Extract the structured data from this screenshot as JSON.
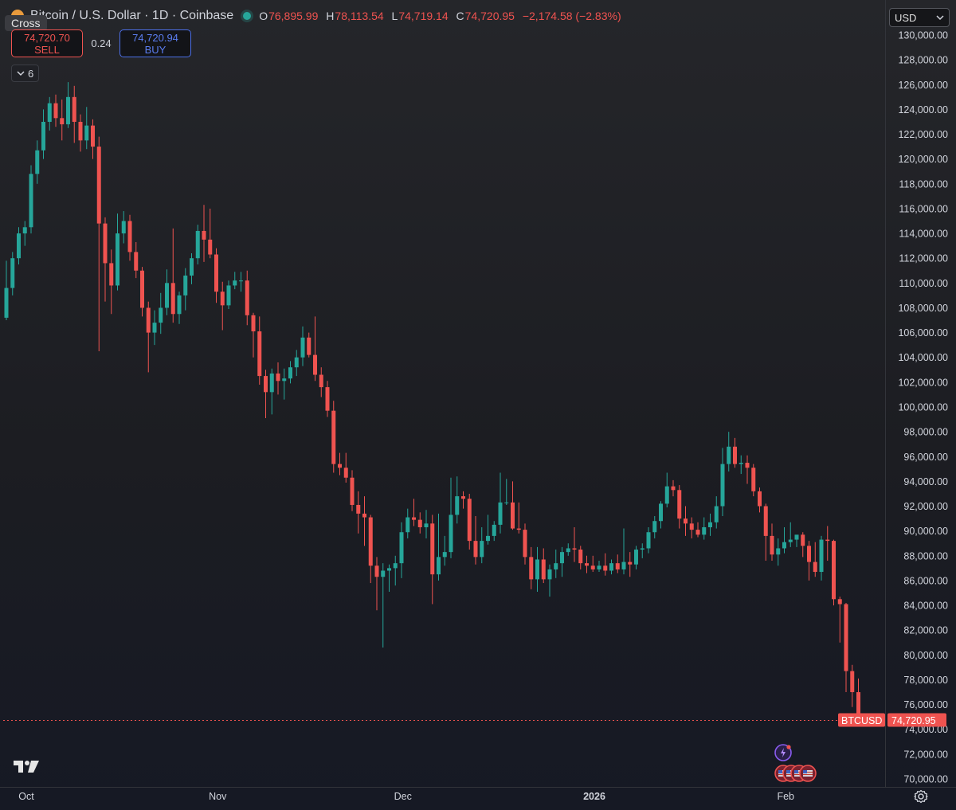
{
  "header": {
    "symbol": "Bitcoin / U.S. Dollar · 1D · Coinbase",
    "o_label": "O",
    "o": "76,895.99",
    "h_label": "H",
    "h": "78,113.54",
    "l_label": "L",
    "l": "74,719.14",
    "c_label": "C",
    "c": "74,720.95",
    "change": "−2,174.58 (−2.83%)"
  },
  "crosshair_tooltip": "Cross",
  "trade": {
    "sell_price": "74,720.70",
    "sell_label": "SELL",
    "spread": "0.24",
    "buy_price": "74,720.94",
    "buy_label": "BUY"
  },
  "indicators_toggle": {
    "count": "6"
  },
  "currency": "USD",
  "price_label": {
    "symbol": "BTCUSD",
    "value": "74,720.95"
  },
  "colors": {
    "up": "#26a69a",
    "down": "#ef5350",
    "accent": "#4c6fe8"
  },
  "icons": [
    "coin-icon",
    "live-dot-icon",
    "chevron-down-icon",
    "tradingview-logo-icon",
    "gear-icon",
    "events-icon",
    "flag-icon"
  ],
  "chart_data": {
    "type": "candlestick",
    "y_ticks": [
      "70,000.00",
      "72,000.00",
      "74,000.00",
      "76,000.00",
      "78,000.00",
      "80,000.00",
      "82,000.00",
      "84,000.00",
      "86,000.00",
      "88,000.00",
      "90,000.00",
      "92,000.00",
      "94,000.00",
      "96,000.00",
      "98,000.00",
      "100,000.00",
      "102,000.00",
      "104,000.00",
      "106,000.00",
      "108,000.00",
      "110,000.00",
      "112,000.00",
      "114,000.00",
      "116,000.00",
      "118,000.00",
      "120,000.00",
      "122,000.00",
      "124,000.00",
      "126,000.00",
      "128,000.00",
      "130,000.00"
    ],
    "x_ticks": [
      {
        "label": "Oct",
        "index": 4,
        "bold": false
      },
      {
        "label": "Nov",
        "index": 35,
        "bold": false
      },
      {
        "label": "Dec",
        "index": 65,
        "bold": false
      },
      {
        "label": "2026",
        "index": 96,
        "bold": true
      },
      {
        "label": "Feb",
        "index": 127,
        "bold": false
      }
    ],
    "ylim": [
      69500,
      130500
    ],
    "candles_close": [
      109600,
      112000,
      114000,
      114500,
      118800,
      120700,
      123000,
      124500,
      123300,
      122800,
      125000,
      123000,
      121500,
      122700,
      121000,
      114800,
      111600,
      109800,
      114000,
      115000,
      112500,
      111000,
      108000,
      106000,
      106800,
      108000,
      110000,
      107500,
      109000,
      110600,
      112000,
      114200,
      113500,
      112300,
      109300,
      108200,
      109800,
      110200,
      110200,
      107400,
      106100,
      102500,
      101200,
      102700,
      102100,
      102300,
      103200,
      104000,
      105600,
      104200,
      102600,
      101600,
      99700,
      95400,
      95100,
      94300,
      92100,
      91400,
      91100,
      87200,
      86300,
      86800,
      87000,
      87400,
      89900,
      91100,
      90900,
      90300,
      90600,
      86500,
      87900,
      88300,
      91300,
      92800,
      92600,
      89200,
      87900,
      89200,
      89600,
      90500,
      92300,
      92300,
      90200,
      90100,
      87900,
      86100,
      87700,
      86100,
      86900,
      87400,
      88300,
      88600,
      88500,
      87400,
      87200,
      86900,
      87200,
      86800,
      87400,
      86900,
      87500,
      87300,
      88500,
      88600,
      89900,
      90800,
      92200,
      93600,
      93300,
      91000,
      90600,
      90100,
      89700,
      90300,
      90700,
      92000,
      95400,
      96800,
      95400,
      95500,
      95100,
      93200,
      92000,
      89600,
      88100,
      88600,
      89100,
      89300,
      89700,
      88800,
      87500,
      86700,
      89300,
      89200,
      84500,
      84100,
      78700,
      77000,
      74721
    ],
    "candles": [
      {
        "o": 107200,
        "h": 111800,
        "l": 107000,
        "c": 109600
      },
      {
        "o": 109600,
        "h": 112500,
        "l": 109000,
        "c": 112000
      },
      {
        "o": 112000,
        "h": 114500,
        "l": 111500,
        "c": 114000
      },
      {
        "o": 114000,
        "h": 115000,
        "l": 113000,
        "c": 114500
      },
      {
        "o": 114500,
        "h": 119500,
        "l": 114000,
        "c": 118800
      },
      {
        "o": 118800,
        "h": 121500,
        "l": 118000,
        "c": 120700
      },
      {
        "o": 120700,
        "h": 124000,
        "l": 120000,
        "c": 123000
      },
      {
        "o": 123000,
        "h": 125000,
        "l": 122300,
        "c": 124500
      },
      {
        "o": 124500,
        "h": 125200,
        "l": 122600,
        "c": 123300
      },
      {
        "o": 123300,
        "h": 124800,
        "l": 121500,
        "c": 122800
      },
      {
        "o": 122800,
        "h": 126200,
        "l": 122500,
        "c": 125000
      },
      {
        "o": 125000,
        "h": 125900,
        "l": 121300,
        "c": 123000
      },
      {
        "o": 123000,
        "h": 123600,
        "l": 120600,
        "c": 121500
      },
      {
        "o": 121500,
        "h": 124200,
        "l": 120800,
        "c": 122700
      },
      {
        "o": 122700,
        "h": 123200,
        "l": 120000,
        "c": 121000
      },
      {
        "o": 121000,
        "h": 121800,
        "l": 104500,
        "c": 114800
      },
      {
        "o": 114800,
        "h": 115300,
        "l": 108500,
        "c": 111600
      },
      {
        "o": 111600,
        "h": 112700,
        "l": 107500,
        "c": 109800
      },
      {
        "o": 109800,
        "h": 115600,
        "l": 109400,
        "c": 114000
      },
      {
        "o": 114000,
        "h": 115800,
        "l": 113200,
        "c": 115000
      },
      {
        "o": 115000,
        "h": 115500,
        "l": 111800,
        "c": 112500
      },
      {
        "o": 112500,
        "h": 113300,
        "l": 110400,
        "c": 111000
      },
      {
        "o": 111000,
        "h": 111300,
        "l": 107300,
        "c": 108000
      },
      {
        "o": 108000,
        "h": 108500,
        "l": 102800,
        "c": 106000
      },
      {
        "o": 106000,
        "h": 107800,
        "l": 105000,
        "c": 106800
      },
      {
        "o": 106800,
        "h": 109200,
        "l": 105900,
        "c": 108000
      },
      {
        "o": 108000,
        "h": 111100,
        "l": 107400,
        "c": 110000
      },
      {
        "o": 110000,
        "h": 114400,
        "l": 106800,
        "c": 107500
      },
      {
        "o": 107500,
        "h": 109300,
        "l": 106700,
        "c": 109000
      },
      {
        "o": 109000,
        "h": 111200,
        "l": 107800,
        "c": 110600
      },
      {
        "o": 110600,
        "h": 112400,
        "l": 109900,
        "c": 112000
      },
      {
        "o": 112000,
        "h": 114700,
        "l": 111500,
        "c": 114200
      },
      {
        "o": 114200,
        "h": 116300,
        "l": 111700,
        "c": 113500
      },
      {
        "o": 113500,
        "h": 116000,
        "l": 112000,
        "c": 112300
      },
      {
        "o": 112300,
        "h": 112800,
        "l": 108400,
        "c": 109300
      },
      {
        "o": 109300,
        "h": 110100,
        "l": 106200,
        "c": 108200
      },
      {
        "o": 108200,
        "h": 110200,
        "l": 107900,
        "c": 109800
      },
      {
        "o": 109800,
        "h": 110900,
        "l": 109500,
        "c": 110200
      },
      {
        "o": 110200,
        "h": 110900,
        "l": 109300,
        "c": 110200
      },
      {
        "o": 110200,
        "h": 111000,
        "l": 106600,
        "c": 107400
      },
      {
        "o": 107400,
        "h": 107600,
        "l": 104000,
        "c": 106100
      },
      {
        "o": 106100,
        "h": 107300,
        "l": 101800,
        "c": 102500
      },
      {
        "o": 102500,
        "h": 103000,
        "l": 99100,
        "c": 101200
      },
      {
        "o": 101200,
        "h": 103100,
        "l": 99400,
        "c": 102700
      },
      {
        "o": 102700,
        "h": 103600,
        "l": 101000,
        "c": 102100
      },
      {
        "o": 102100,
        "h": 103100,
        "l": 100600,
        "c": 102300
      },
      {
        "o": 102300,
        "h": 103700,
        "l": 101900,
        "c": 103200
      },
      {
        "o": 103200,
        "h": 104600,
        "l": 102500,
        "c": 104000
      },
      {
        "o": 104000,
        "h": 106500,
        "l": 103300,
        "c": 105600
      },
      {
        "o": 105600,
        "h": 106000,
        "l": 104000,
        "c": 104200
      },
      {
        "o": 104200,
        "h": 107300,
        "l": 102100,
        "c": 102600
      },
      {
        "o": 102600,
        "h": 103200,
        "l": 100800,
        "c": 101600
      },
      {
        "o": 101600,
        "h": 102100,
        "l": 99200,
        "c": 99700
      },
      {
        "o": 99700,
        "h": 100500,
        "l": 94700,
        "c": 95400
      },
      {
        "o": 95400,
        "h": 96300,
        "l": 94500,
        "c": 95100
      },
      {
        "o": 95100,
        "h": 96300,
        "l": 93900,
        "c": 94300
      },
      {
        "o": 94300,
        "h": 94900,
        "l": 91600,
        "c": 92100
      },
      {
        "o": 92100,
        "h": 93200,
        "l": 89800,
        "c": 91400
      },
      {
        "o": 91400,
        "h": 92800,
        "l": 88800,
        "c": 91100
      },
      {
        "o": 91100,
        "h": 91300,
        "l": 85800,
        "c": 87200
      },
      {
        "o": 87200,
        "h": 87900,
        "l": 83600,
        "c": 86300
      },
      {
        "o": 86300,
        "h": 87400,
        "l": 80600,
        "c": 86800
      },
      {
        "o": 86800,
        "h": 87300,
        "l": 85100,
        "c": 87000
      },
      {
        "o": 87000,
        "h": 88000,
        "l": 85600,
        "c": 87400
      },
      {
        "o": 87400,
        "h": 90700,
        "l": 86200,
        "c": 89900
      },
      {
        "o": 89900,
        "h": 91800,
        "l": 89400,
        "c": 91100
      },
      {
        "o": 91100,
        "h": 92600,
        "l": 90400,
        "c": 90900
      },
      {
        "o": 90900,
        "h": 91500,
        "l": 89800,
        "c": 90300
      },
      {
        "o": 90300,
        "h": 91700,
        "l": 89400,
        "c": 90600
      },
      {
        "o": 90600,
        "h": 91300,
        "l": 84100,
        "c": 86500
      },
      {
        "o": 86500,
        "h": 91400,
        "l": 86000,
        "c": 87900
      },
      {
        "o": 87900,
        "h": 89600,
        "l": 87200,
        "c": 88300
      },
      {
        "o": 88300,
        "h": 94300,
        "l": 87800,
        "c": 91300
      },
      {
        "o": 91300,
        "h": 94400,
        "l": 90600,
        "c": 92800
      },
      {
        "o": 92800,
        "h": 93200,
        "l": 91800,
        "c": 92600
      },
      {
        "o": 92600,
        "h": 93000,
        "l": 88500,
        "c": 89200
      },
      {
        "o": 89200,
        "h": 91200,
        "l": 87300,
        "c": 87900
      },
      {
        "o": 87900,
        "h": 90300,
        "l": 87400,
        "c": 89200
      },
      {
        "o": 89200,
        "h": 91300,
        "l": 88900,
        "c": 89600
      },
      {
        "o": 89600,
        "h": 90800,
        "l": 89200,
        "c": 90500
      },
      {
        "o": 90500,
        "h": 94700,
        "l": 89800,
        "c": 92300
      },
      {
        "o": 92300,
        "h": 94200,
        "l": 92100,
        "c": 92300
      },
      {
        "o": 92300,
        "h": 94000,
        "l": 90100,
        "c": 90200
      },
      {
        "o": 90200,
        "h": 92300,
        "l": 89800,
        "c": 90100
      },
      {
        "o": 90100,
        "h": 90600,
        "l": 87300,
        "c": 87900
      },
      {
        "o": 87900,
        "h": 88700,
        "l": 85300,
        "c": 86100
      },
      {
        "o": 86100,
        "h": 88700,
        "l": 85100,
        "c": 87700
      },
      {
        "o": 87700,
        "h": 88600,
        "l": 85800,
        "c": 86100
      },
      {
        "o": 86100,
        "h": 87300,
        "l": 84700,
        "c": 86900
      },
      {
        "o": 86900,
        "h": 88500,
        "l": 86200,
        "c": 87400
      },
      {
        "o": 87400,
        "h": 88700,
        "l": 86300,
        "c": 88300
      },
      {
        "o": 88300,
        "h": 89000,
        "l": 88000,
        "c": 88600
      },
      {
        "o": 88600,
        "h": 90300,
        "l": 87500,
        "c": 88500
      },
      {
        "o": 88500,
        "h": 88800,
        "l": 86900,
        "c": 87400
      },
      {
        "o": 87400,
        "h": 88000,
        "l": 86600,
        "c": 87200
      },
      {
        "o": 87200,
        "h": 88000,
        "l": 86700,
        "c": 86900
      },
      {
        "o": 86900,
        "h": 87600,
        "l": 86700,
        "c": 87200
      },
      {
        "o": 87200,
        "h": 88200,
        "l": 86400,
        "c": 86800
      },
      {
        "o": 86800,
        "h": 87700,
        "l": 86500,
        "c": 87400
      },
      {
        "o": 87400,
        "h": 88100,
        "l": 86600,
        "c": 86900
      },
      {
        "o": 86900,
        "h": 90200,
        "l": 86500,
        "c": 87500
      },
      {
        "o": 87500,
        "h": 88300,
        "l": 86300,
        "c": 87300
      },
      {
        "o": 87300,
        "h": 88800,
        "l": 86900,
        "c": 88500
      },
      {
        "o": 88500,
        "h": 89000,
        "l": 87800,
        "c": 88600
      },
      {
        "o": 88600,
        "h": 90300,
        "l": 88200,
        "c": 89900
      },
      {
        "o": 89900,
        "h": 91200,
        "l": 89400,
        "c": 90800
      },
      {
        "o": 90800,
        "h": 92400,
        "l": 90200,
        "c": 92200
      },
      {
        "o": 92200,
        "h": 94700,
        "l": 91900,
        "c": 93600
      },
      {
        "o": 93600,
        "h": 94100,
        "l": 92800,
        "c": 93300
      },
      {
        "o": 93300,
        "h": 93700,
        "l": 90200,
        "c": 91000
      },
      {
        "o": 91000,
        "h": 92000,
        "l": 89600,
        "c": 90600
      },
      {
        "o": 90600,
        "h": 91100,
        "l": 89400,
        "c": 90100
      },
      {
        "o": 90100,
        "h": 90700,
        "l": 89500,
        "c": 89700
      },
      {
        "o": 89700,
        "h": 91100,
        "l": 89300,
        "c": 90300
      },
      {
        "o": 90300,
        "h": 91400,
        "l": 89600,
        "c": 90700
      },
      {
        "o": 90700,
        "h": 92800,
        "l": 90200,
        "c": 92000
      },
      {
        "o": 92000,
        "h": 96700,
        "l": 91200,
        "c": 95400
      },
      {
        "o": 95400,
        "h": 98000,
        "l": 94800,
        "c": 96800
      },
      {
        "o": 96800,
        "h": 97500,
        "l": 95100,
        "c": 95400
      },
      {
        "o": 95400,
        "h": 96100,
        "l": 94600,
        "c": 95500
      },
      {
        "o": 95500,
        "h": 96100,
        "l": 93800,
        "c": 95100
      },
      {
        "o": 95100,
        "h": 95400,
        "l": 92800,
        "c": 93200
      },
      {
        "o": 93200,
        "h": 93500,
        "l": 91500,
        "c": 92000
      },
      {
        "o": 92000,
        "h": 92200,
        "l": 87600,
        "c": 89600
      },
      {
        "o": 89600,
        "h": 90600,
        "l": 87600,
        "c": 88100
      },
      {
        "o": 88100,
        "h": 89400,
        "l": 87200,
        "c": 88600
      },
      {
        "o": 88600,
        "h": 90300,
        "l": 88200,
        "c": 89100
      },
      {
        "o": 89100,
        "h": 90700,
        "l": 88700,
        "c": 89300
      },
      {
        "o": 89300,
        "h": 89600,
        "l": 88700,
        "c": 89700
      },
      {
        "o": 89700,
        "h": 89900,
        "l": 87900,
        "c": 88800
      },
      {
        "o": 88800,
        "h": 89200,
        "l": 86000,
        "c": 87500
      },
      {
        "o": 87500,
        "h": 89100,
        "l": 86300,
        "c": 86700
      },
      {
        "o": 86700,
        "h": 89600,
        "l": 86000,
        "c": 89300
      },
      {
        "o": 89300,
        "h": 90400,
        "l": 87600,
        "c": 89200
      },
      {
        "o": 89200,
        "h": 89300,
        "l": 84000,
        "c": 84500
      },
      {
        "o": 84500,
        "h": 84700,
        "l": 81000,
        "c": 84100
      },
      {
        "o": 84100,
        "h": 84200,
        "l": 77000,
        "c": 78700
      },
      {
        "o": 78700,
        "h": 79200,
        "l": 75800,
        "c": 77000
      },
      {
        "o": 77000,
        "h": 78100,
        "l": 74700,
        "c": 74721
      }
    ]
  }
}
